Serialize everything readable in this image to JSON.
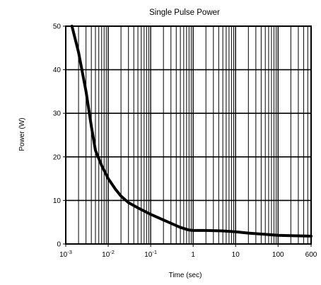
{
  "chart_data": {
    "type": "line",
    "title": "Single Pulse Power",
    "xlabel": "Time (sec)",
    "ylabel": "Power  (W)",
    "x_scale": "log",
    "xlim": [
      0.001,
      600
    ],
    "ylim": [
      0,
      50
    ],
    "grid": true,
    "x_ticks": [
      {
        "value": 0.001,
        "base": "10",
        "exp": "-3"
      },
      {
        "value": 0.01,
        "base": "10",
        "exp": "-2"
      },
      {
        "value": 0.1,
        "base": "10",
        "exp": "-1"
      },
      {
        "value": 1,
        "base": "1",
        "exp": ""
      },
      {
        "value": 10,
        "base": "10",
        "exp": ""
      },
      {
        "value": 100,
        "base": "100",
        "exp": ""
      },
      {
        "value": 600,
        "base": "600",
        "exp": ""
      }
    ],
    "y_ticks": [
      0,
      10,
      20,
      30,
      40,
      50
    ],
    "series": [
      {
        "x": [
          0.0014,
          0.002,
          0.003,
          0.004,
          0.005,
          0.007,
          0.01,
          0.015,
          0.02,
          0.03,
          0.05,
          0.1,
          0.2,
          0.5,
          0.8,
          1,
          2,
          5,
          10,
          20,
          50,
          100,
          200,
          600
        ],
        "y": [
          50,
          44,
          35,
          27,
          21.5,
          18,
          15,
          12.5,
          11,
          9.5,
          8.3,
          6.8,
          5.5,
          3.8,
          3.2,
          3.1,
          3.1,
          3.0,
          2.8,
          2.5,
          2.2,
          2.0,
          1.9,
          1.8
        ]
      }
    ]
  }
}
